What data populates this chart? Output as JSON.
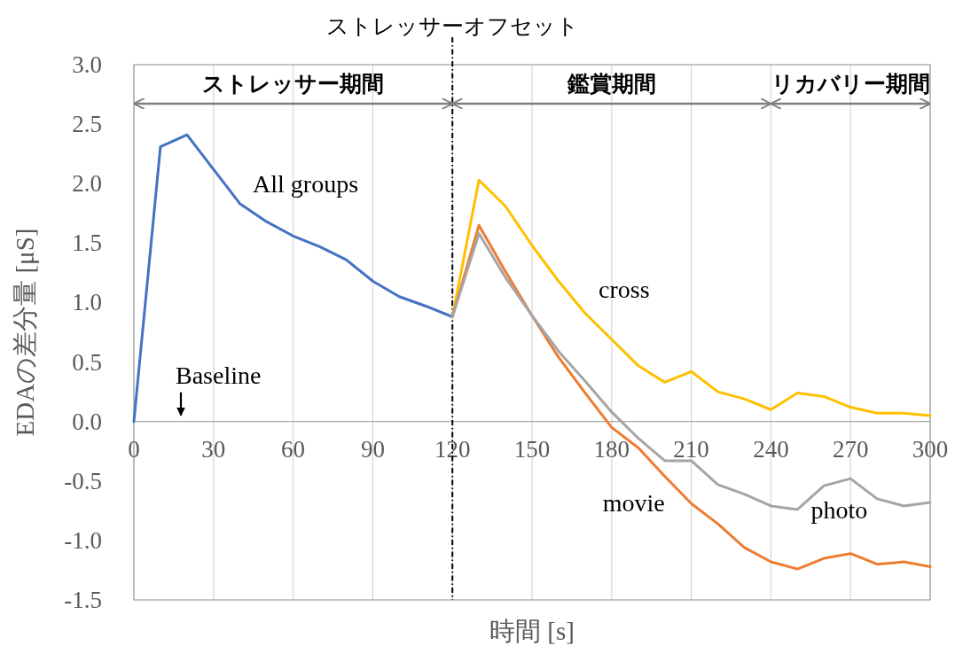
{
  "chart_data": {
    "type": "line",
    "xlabel": "時間 [s]",
    "ylabel": "EDAの差分量 [μS]",
    "xlim": [
      0,
      300
    ],
    "ylim": [
      -1.5,
      3.0
    ],
    "xticks": [
      0,
      30,
      60,
      90,
      120,
      150,
      180,
      210,
      240,
      270,
      300
    ],
    "yticks": [
      {
        "value": -1.5,
        "label": "-1.5"
      },
      {
        "value": -1.0,
        "label": "-1.0"
      },
      {
        "value": -0.5,
        "label": "-0.5"
      },
      {
        "value": 0,
        "label": "0.0"
      },
      {
        "value": 0.5,
        "label": "0.5"
      },
      {
        "value": 1.0,
        "label": "1.0"
      },
      {
        "value": 1.5,
        "label": "1.5"
      },
      {
        "value": 2.0,
        "label": "2.0"
      },
      {
        "value": 2.5,
        "label": "2.5"
      },
      {
        "value": 3.0,
        "label": "3.0"
      }
    ],
    "grid": "x",
    "series": [
      {
        "name": "All groups",
        "color": "#4472c4",
        "x": [
          0,
          10,
          20,
          30,
          40,
          50,
          60,
          70,
          80,
          90,
          100,
          110,
          120
        ],
        "values": [
          0,
          2.31,
          2.41,
          2.12,
          1.83,
          1.68,
          1.56,
          1.47,
          1.36,
          1.18,
          1.05,
          0.97,
          0.88
        ]
      },
      {
        "name": "cross",
        "color": "#ffc000",
        "x": [
          120,
          130,
          140,
          150,
          160,
          170,
          180,
          190,
          200,
          210,
          220,
          230,
          240,
          250,
          260,
          270,
          280,
          290,
          300
        ],
        "values": [
          0.88,
          2.03,
          1.81,
          1.48,
          1.18,
          0.91,
          0.69,
          0.47,
          0.33,
          0.42,
          0.25,
          0.19,
          0.1,
          0.24,
          0.21,
          0.12,
          0.07,
          0.07,
          0.05
        ]
      },
      {
        "name": "movie",
        "color": "#ed7d31",
        "x": [
          120,
          130,
          140,
          150,
          160,
          170,
          180,
          190,
          200,
          210,
          220,
          230,
          240,
          250,
          260,
          270,
          280,
          290,
          300
        ],
        "values": [
          0.88,
          1.65,
          1.26,
          0.89,
          0.54,
          0.24,
          -0.05,
          -0.22,
          -0.46,
          -0.69,
          -0.86,
          -1.06,
          -1.18,
          -1.24,
          -1.15,
          -1.11,
          -1.2,
          -1.18,
          -1.22
        ]
      },
      {
        "name": "photo",
        "color": "#a5a5a5",
        "x": [
          120,
          130,
          140,
          150,
          160,
          170,
          180,
          190,
          200,
          210,
          220,
          230,
          240,
          250,
          260,
          270,
          280,
          290,
          300
        ],
        "values": [
          0.88,
          1.58,
          1.21,
          0.89,
          0.59,
          0.34,
          0.08,
          -0.14,
          -0.33,
          -0.33,
          -0.53,
          -0.61,
          -0.71,
          -0.74,
          -0.54,
          -0.48,
          -0.65,
          -0.71,
          -0.68
        ]
      }
    ],
    "ref_lines": [
      {
        "axis": "x",
        "value": 120,
        "label": "ストレッサーオフセット",
        "color": "#000000",
        "line_style": "dashed"
      }
    ],
    "annotations": [
      "Baseline",
      "ストレッサー期間",
      "鑑賞期間",
      "リカバリー期間"
    ]
  }
}
